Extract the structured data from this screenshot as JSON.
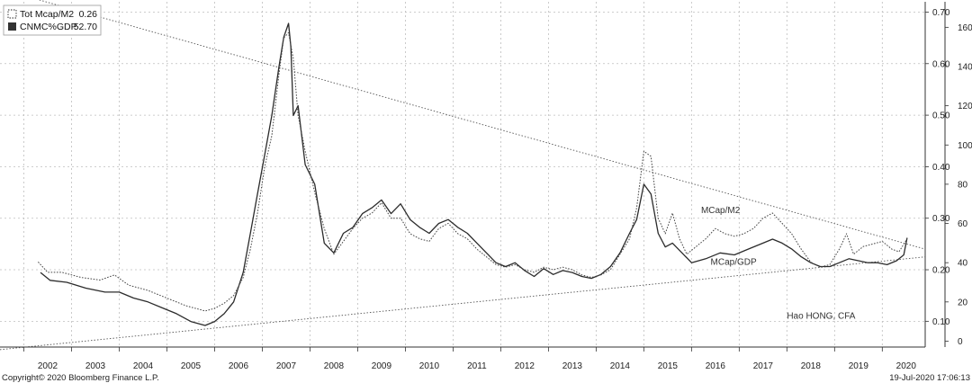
{
  "chart_data": {
    "type": "line",
    "title": "",
    "legend": {
      "placement": "top-left",
      "items": [
        {
          "label": "Tot Mcap/M2",
          "value": "0.26",
          "style": "dotted"
        },
        {
          "label": "CNMC%GDP",
          "value": "52.70",
          "style": "solid"
        }
      ]
    },
    "x_labels": [
      "2002",
      "2003",
      "2004",
      "2005",
      "2006",
      "2007",
      "2008",
      "2009",
      "2010",
      "2011",
      "2012",
      "2013",
      "2014",
      "2015",
      "2016",
      "2017",
      "2018",
      "2019",
      "2020"
    ],
    "x_range": [
      2001.5,
      2020.9
    ],
    "y_left": {
      "ticks": [
        "0.10",
        "0.20",
        "0.30",
        "0.40",
        "0.50",
        "0.60",
        "0.70"
      ],
      "range": [
        0.05,
        0.72
      ]
    },
    "y_right": {
      "ticks": [
        "0",
        "20",
        "40",
        "60",
        "80",
        "100",
        "120",
        "140",
        "160"
      ],
      "range": [
        -3,
        173
      ]
    },
    "grid": true,
    "series": [
      {
        "name": "MCap/GDP",
        "axis": "right",
        "style": "solid",
        "points": [
          [
            2002.35,
            35
          ],
          [
            2002.55,
            31
          ],
          [
            2002.9,
            30
          ],
          [
            2003.3,
            27
          ],
          [
            2003.7,
            25
          ],
          [
            2004.0,
            25
          ],
          [
            2004.3,
            22
          ],
          [
            2004.6,
            20
          ],
          [
            2004.9,
            17
          ],
          [
            2005.2,
            14
          ],
          [
            2005.5,
            10
          ],
          [
            2005.8,
            8
          ],
          [
            2006.0,
            10
          ],
          [
            2006.2,
            14
          ],
          [
            2006.4,
            20
          ],
          [
            2006.6,
            35
          ],
          [
            2006.75,
            55
          ],
          [
            2006.9,
            75
          ],
          [
            2007.05,
            95
          ],
          [
            2007.2,
            115
          ],
          [
            2007.35,
            140
          ],
          [
            2007.45,
            155
          ],
          [
            2007.55,
            162
          ],
          [
            2007.6,
            150
          ],
          [
            2007.65,
            115
          ],
          [
            2007.75,
            120
          ],
          [
            2007.9,
            90
          ],
          [
            2008.1,
            80
          ],
          [
            2008.3,
            50
          ],
          [
            2008.5,
            45
          ],
          [
            2008.7,
            55
          ],
          [
            2008.9,
            58
          ],
          [
            2009.1,
            65
          ],
          [
            2009.3,
            68
          ],
          [
            2009.5,
            72
          ],
          [
            2009.7,
            65
          ],
          [
            2009.9,
            70
          ],
          [
            2010.1,
            62
          ],
          [
            2010.3,
            58
          ],
          [
            2010.5,
            55
          ],
          [
            2010.7,
            60
          ],
          [
            2010.9,
            62
          ],
          [
            2011.1,
            58
          ],
          [
            2011.3,
            55
          ],
          [
            2011.5,
            50
          ],
          [
            2011.7,
            45
          ],
          [
            2011.9,
            40
          ],
          [
            2012.1,
            38
          ],
          [
            2012.3,
            40
          ],
          [
            2012.5,
            36
          ],
          [
            2012.7,
            33
          ],
          [
            2012.9,
            37
          ],
          [
            2013.1,
            34
          ],
          [
            2013.3,
            36
          ],
          [
            2013.5,
            35
          ],
          [
            2013.7,
            33
          ],
          [
            2013.9,
            32
          ],
          [
            2014.1,
            34
          ],
          [
            2014.3,
            38
          ],
          [
            2014.5,
            45
          ],
          [
            2014.7,
            55
          ],
          [
            2014.85,
            62
          ],
          [
            2015.0,
            80
          ],
          [
            2015.15,
            75
          ],
          [
            2015.3,
            55
          ],
          [
            2015.45,
            48
          ],
          [
            2015.6,
            50
          ],
          [
            2015.8,
            45
          ],
          [
            2016.0,
            40
          ],
          [
            2016.3,
            42
          ],
          [
            2016.6,
            45
          ],
          [
            2016.9,
            44
          ],
          [
            2017.2,
            47
          ],
          [
            2017.5,
            50
          ],
          [
            2017.7,
            52
          ],
          [
            2017.9,
            50
          ],
          [
            2018.1,
            47
          ],
          [
            2018.3,
            43
          ],
          [
            2018.5,
            40
          ],
          [
            2018.7,
            38
          ],
          [
            2018.9,
            38
          ],
          [
            2019.1,
            40
          ],
          [
            2019.3,
            42
          ],
          [
            2019.5,
            41
          ],
          [
            2019.7,
            40
          ],
          [
            2019.9,
            40
          ],
          [
            2020.1,
            39
          ],
          [
            2020.3,
            41
          ],
          [
            2020.45,
            44
          ],
          [
            2020.52,
            52.7
          ]
        ]
      },
      {
        "name": "MCap/M2",
        "axis": "left",
        "style": "dotted",
        "points": [
          [
            2002.3,
            0.215
          ],
          [
            2002.5,
            0.195
          ],
          [
            2002.8,
            0.195
          ],
          [
            2003.2,
            0.185
          ],
          [
            2003.6,
            0.18
          ],
          [
            2003.9,
            0.19
          ],
          [
            2004.2,
            0.17
          ],
          [
            2004.6,
            0.16
          ],
          [
            2005.0,
            0.145
          ],
          [
            2005.4,
            0.13
          ],
          [
            2005.8,
            0.12
          ],
          [
            2006.0,
            0.125
          ],
          [
            2006.2,
            0.135
          ],
          [
            2006.4,
            0.15
          ],
          [
            2006.6,
            0.185
          ],
          [
            2006.75,
            0.24
          ],
          [
            2006.9,
            0.31
          ],
          [
            2007.05,
            0.4
          ],
          [
            2007.2,
            0.46
          ],
          [
            2007.35,
            0.58
          ],
          [
            2007.45,
            0.65
          ],
          [
            2007.55,
            0.66
          ],
          [
            2007.65,
            0.61
          ],
          [
            2007.75,
            0.5
          ],
          [
            2007.9,
            0.43
          ],
          [
            2008.1,
            0.35
          ],
          [
            2008.3,
            0.28
          ],
          [
            2008.5,
            0.23
          ],
          [
            2008.7,
            0.255
          ],
          [
            2008.9,
            0.28
          ],
          [
            2009.1,
            0.3
          ],
          [
            2009.3,
            0.31
          ],
          [
            2009.5,
            0.33
          ],
          [
            2009.7,
            0.3
          ],
          [
            2009.9,
            0.3
          ],
          [
            2010.1,
            0.27
          ],
          [
            2010.3,
            0.26
          ],
          [
            2010.5,
            0.255
          ],
          [
            2010.7,
            0.28
          ],
          [
            2010.9,
            0.29
          ],
          [
            2011.1,
            0.27
          ],
          [
            2011.3,
            0.26
          ],
          [
            2011.5,
            0.24
          ],
          [
            2011.7,
            0.225
          ],
          [
            2011.9,
            0.21
          ],
          [
            2012.1,
            0.205
          ],
          [
            2012.3,
            0.21
          ],
          [
            2012.5,
            0.2
          ],
          [
            2012.7,
            0.195
          ],
          [
            2012.9,
            0.205
          ],
          [
            2013.1,
            0.2
          ],
          [
            2013.3,
            0.205
          ],
          [
            2013.5,
            0.2
          ],
          [
            2013.7,
            0.19
          ],
          [
            2013.9,
            0.185
          ],
          [
            2014.1,
            0.19
          ],
          [
            2014.3,
            0.2
          ],
          [
            2014.5,
            0.23
          ],
          [
            2014.7,
            0.26
          ],
          [
            2014.85,
            0.32
          ],
          [
            2015.0,
            0.43
          ],
          [
            2015.15,
            0.42
          ],
          [
            2015.3,
            0.3
          ],
          [
            2015.45,
            0.27
          ],
          [
            2015.6,
            0.31
          ],
          [
            2015.75,
            0.26
          ],
          [
            2015.9,
            0.23
          ],
          [
            2016.1,
            0.245
          ],
          [
            2016.3,
            0.26
          ],
          [
            2016.5,
            0.28
          ],
          [
            2016.7,
            0.27
          ],
          [
            2016.9,
            0.265
          ],
          [
            2017.1,
            0.27
          ],
          [
            2017.3,
            0.28
          ],
          [
            2017.5,
            0.3
          ],
          [
            2017.7,
            0.31
          ],
          [
            2017.9,
            0.29
          ],
          [
            2018.1,
            0.27
          ],
          [
            2018.3,
            0.24
          ],
          [
            2018.5,
            0.215
          ],
          [
            2018.7,
            0.205
          ],
          [
            2018.9,
            0.21
          ],
          [
            2019.1,
            0.24
          ],
          [
            2019.25,
            0.27
          ],
          [
            2019.4,
            0.23
          ],
          [
            2019.6,
            0.245
          ],
          [
            2019.8,
            0.25
          ],
          [
            2020.0,
            0.255
          ],
          [
            2020.2,
            0.24
          ],
          [
            2020.35,
            0.235
          ],
          [
            2020.52,
            0.26
          ]
        ]
      }
    ],
    "trendlines": [
      {
        "axis": "left",
        "from": [
          2001.5,
          0.745
        ],
        "to": [
          2020.9,
          0.24
        ],
        "style": "dotted"
      },
      {
        "axis": "left",
        "from": [
          2001.5,
          0.045
        ],
        "to": [
          2020.9,
          0.225
        ],
        "style": "dotted"
      }
    ],
    "annotations": [
      {
        "text": "MCap/M2",
        "x": 2016.2,
        "y": 0.31,
        "axis": "left"
      },
      {
        "text": "MCap/GDP",
        "x": 2016.4,
        "y": 0.21,
        "axis": "left"
      },
      {
        "text": "Hao HONG, CFA",
        "x": 2018.0,
        "y": 0.105,
        "axis": "left"
      }
    ]
  },
  "footer": {
    "copyright": "Copyright© 2020 Bloomberg Finance L.P.",
    "timestamp": "19-Jul-2020 17:06:13"
  }
}
